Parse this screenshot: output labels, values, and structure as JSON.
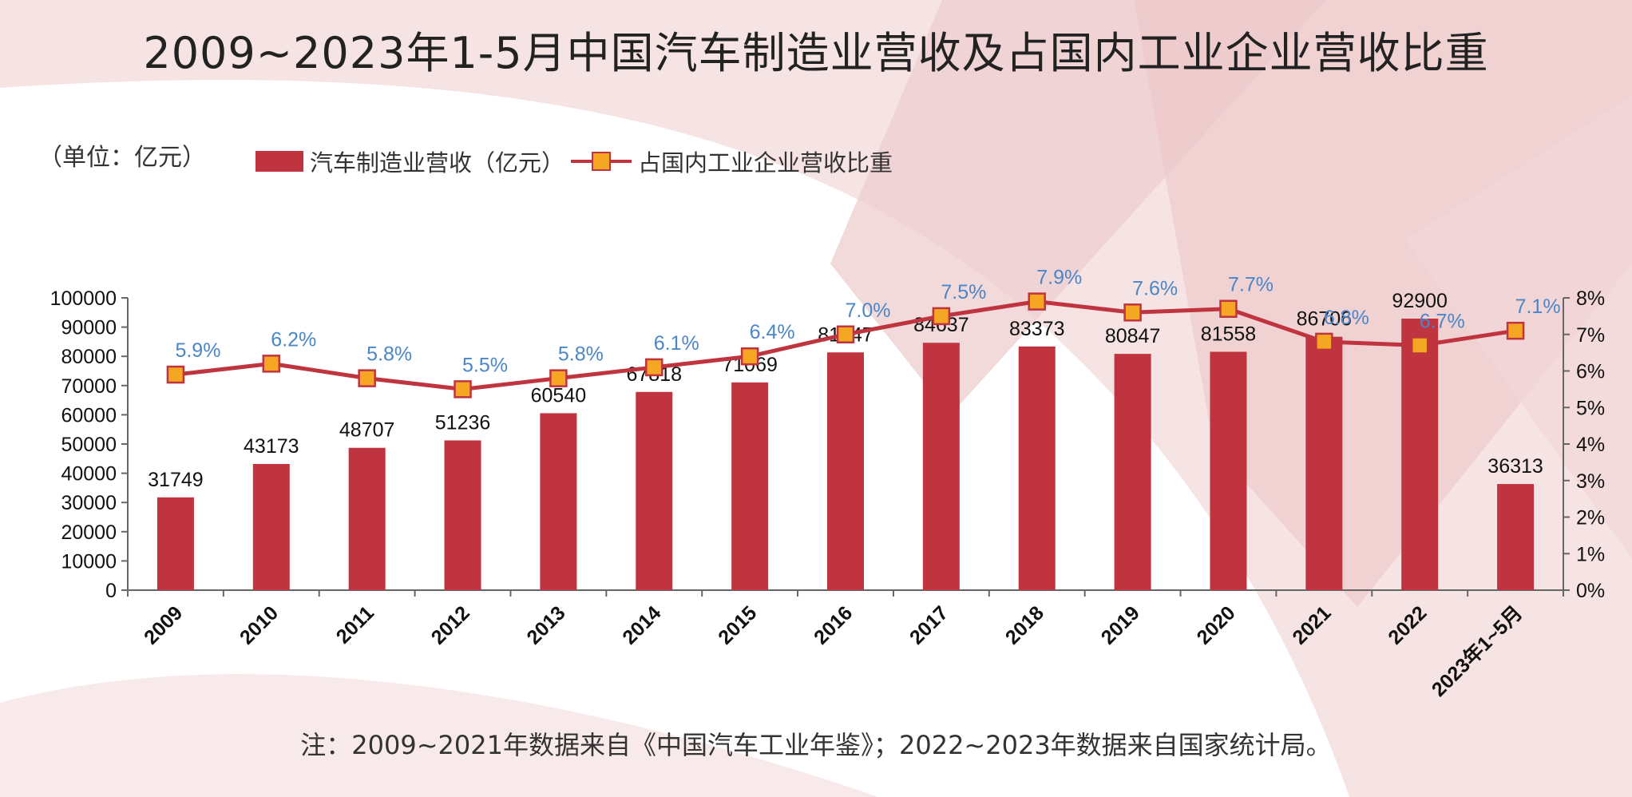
{
  "title": "2009~2023年1-5月中国汽车制造业营收及占国内工业企业营收比重",
  "unit_label": "（单位：亿元）",
  "note": "注：2009~2021年数据来自《中国汽车工业年鉴》；2022~2023年数据来自国家统计局。",
  "colors": {
    "bar": "#c0343f",
    "line": "#c0343f",
    "marker_fill": "#f5a623",
    "pct_label": "#4a86c8",
    "bg_tint": "#f3d9da"
  },
  "legend": {
    "bar_label": "汽车制造业营收（亿元）",
    "line_label": "占国内工业企业营收比重"
  },
  "chart_data": {
    "type": "bar",
    "categories": [
      "2009",
      "2010",
      "2011",
      "2012",
      "2013",
      "2014",
      "2015",
      "2016",
      "2017",
      "2018",
      "2019",
      "2020",
      "2021",
      "2022",
      "2023年1~5月"
    ],
    "series": [
      {
        "name": "汽车制造业营收（亿元）",
        "type": "bar",
        "axis": "left",
        "values": [
          31749,
          43173,
          48707,
          51236,
          60540,
          67818,
          71069,
          81347,
          84637,
          83373,
          80847,
          81558,
          86706,
          92900,
          36313
        ],
        "labels": [
          "31749",
          "43173",
          "48707",
          "51236",
          "60540",
          "67818",
          "71069",
          "81347",
          "84637",
          "83373",
          "80847",
          "81558",
          "86706",
          "92900",
          "36313"
        ]
      },
      {
        "name": "占国内工业企业营收比重",
        "type": "line",
        "axis": "right",
        "values": [
          5.9,
          6.2,
          5.8,
          5.5,
          5.8,
          6.1,
          6.4,
          7.0,
          7.5,
          7.9,
          7.6,
          7.7,
          6.8,
          6.7,
          7.1
        ],
        "labels": [
          "5.9%",
          "6.2%",
          "5.8%",
          "5.5%",
          "5.8%",
          "6.1%",
          "6.4%",
          "7.0%",
          "7.5%",
          "7.9%",
          "7.6%",
          "7.7%",
          "6.8%",
          "6.7%",
          "7.1%"
        ]
      }
    ],
    "y_left": {
      "range": [
        0,
        100000
      ],
      "ticks": [
        "0",
        "10000",
        "20000",
        "30000",
        "40000",
        "50000",
        "60000",
        "70000",
        "80000",
        "90000",
        "100000"
      ]
    },
    "y_right": {
      "range": [
        0,
        8
      ],
      "ticks": [
        "0%",
        "1%",
        "2%",
        "3%",
        "4%",
        "5%",
        "6%",
        "7%",
        "8%"
      ]
    },
    "grid": false,
    "legend_position": "top-left"
  }
}
